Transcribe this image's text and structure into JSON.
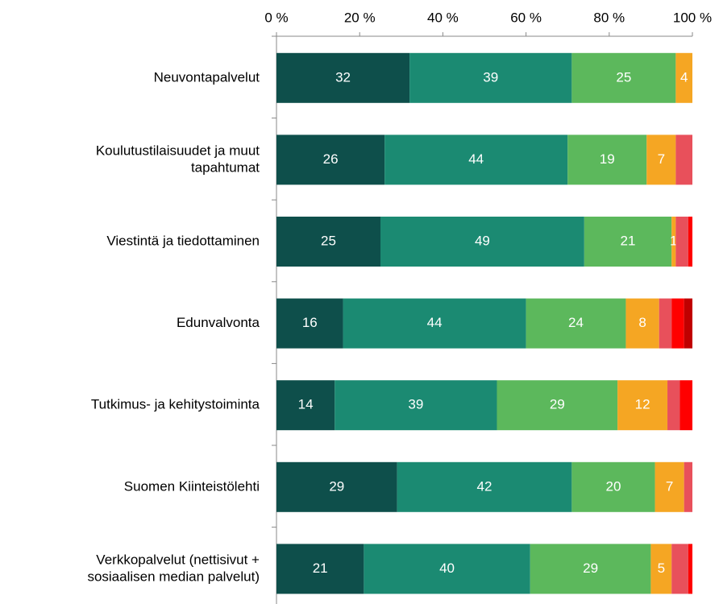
{
  "chart_data": {
    "type": "stacked-bar-horizontal",
    "categories": [
      "Neuvontapalvelut",
      [
        "Koulutustilaisuudet ja muut",
        "tapahtumat"
      ],
      "Viestintä ja tiedottaminen",
      "Edunvalvonta",
      "Tutkimus- ja kehitystoiminta",
      "Suomen Kiinteistölehti",
      [
        "Verkkopalvelut (nettisivut +",
        "sosiaalisen median palvelut)"
      ]
    ],
    "series": [
      {
        "color": "#0e4f4b",
        "show_labels": true,
        "values": [
          32,
          26,
          25,
          16,
          14,
          29,
          21
        ]
      },
      {
        "color": "#1b8a72",
        "show_labels": true,
        "values": [
          39,
          44,
          49,
          44,
          39,
          42,
          40
        ]
      },
      {
        "color": "#5cb85c",
        "show_labels": true,
        "values": [
          25,
          19,
          21,
          24,
          29,
          20,
          29
        ]
      },
      {
        "color": "#f5a623",
        "show_labels": true,
        "values": [
          4,
          7,
          1,
          8,
          12,
          7,
          5
        ]
      },
      {
        "color": "#e8505b",
        "show_labels": false,
        "values": [
          0,
          4,
          3,
          3,
          3,
          2,
          4
        ]
      },
      {
        "color": "#ff0000",
        "show_labels": false,
        "values": [
          0,
          0,
          1,
          3,
          3,
          0,
          1
        ]
      },
      {
        "color": "#c00000",
        "show_labels": false,
        "values": [
          0,
          0,
          0,
          2,
          0,
          0,
          0
        ]
      }
    ],
    "xlim": [
      0,
      100
    ],
    "xticks": [
      {
        "value": 0,
        "label": "0 %"
      },
      {
        "value": 20,
        "label": "20 %"
      },
      {
        "value": 40,
        "label": "40 %"
      },
      {
        "value": 60,
        "label": "60 %"
      },
      {
        "value": 80,
        "label": "80 %"
      },
      {
        "value": 100,
        "label": "100 %"
      }
    ]
  }
}
